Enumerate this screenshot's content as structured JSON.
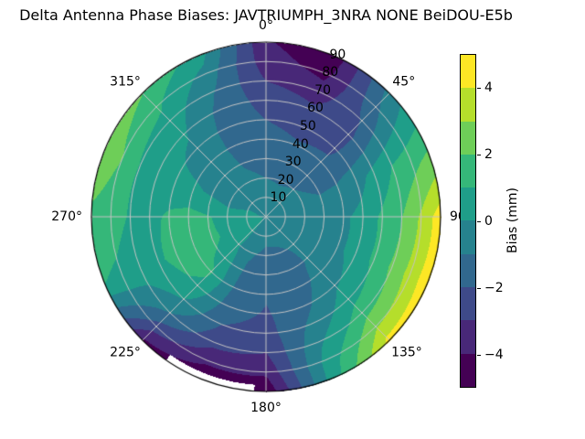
{
  "chart_data": {
    "type": "heatmap",
    "subtype": "polar-filled-contour-skyplot",
    "title": "Delta Antenna Phase Biases: JAVTRIUMPH_3NRA NONE BeiDOU-E5b",
    "theta_ticks": [
      {
        "angle": 0,
        "label": "0°"
      },
      {
        "angle": 45,
        "label": "45°"
      },
      {
        "angle": 90,
        "label": "90"
      },
      {
        "angle": 135,
        "label": "135°"
      },
      {
        "angle": 180,
        "label": "180°"
      },
      {
        "angle": 225,
        "label": "225°"
      },
      {
        "angle": 270,
        "label": "270°"
      },
      {
        "angle": 315,
        "label": "315°"
      }
    ],
    "radial_ticks": [
      {
        "value": 10,
        "label": "10"
      },
      {
        "value": 20,
        "label": "20"
      },
      {
        "value": 30,
        "label": "30"
      },
      {
        "value": 40,
        "label": "40"
      },
      {
        "value": 50,
        "label": "50"
      },
      {
        "value": 60,
        "label": "60"
      },
      {
        "value": 70,
        "label": "70"
      },
      {
        "value": 80,
        "label": "80"
      },
      {
        "value": 90,
        "label": "90"
      }
    ],
    "radial_label_angle_deg": 22.5,
    "grid_color": "#c4c4c4",
    "outline_color": "#000000",
    "colorbar": {
      "label": "Bias (mm)",
      "vmin": -5,
      "vmax": 5,
      "band_step": 1,
      "ticks": [
        {
          "value": 4,
          "label": "4"
        },
        {
          "value": 2,
          "label": "2"
        },
        {
          "value": 0,
          "label": "0"
        },
        {
          "value": -2,
          "label": "−2"
        },
        {
          "value": -4,
          "label": "−4"
        }
      ],
      "palette": [
        "#440154",
        "#482878",
        "#3e4a89",
        "#31688e",
        "#26828e",
        "#1f9e89",
        "#35b779",
        "#6ece58",
        "#b5de2b",
        "#fde725"
      ]
    },
    "grid": {
      "azimuth_step_deg": 22.5,
      "zenith_step_deg": 10,
      "zenith_values": [
        0,
        10,
        20,
        30,
        40,
        50,
        60,
        70,
        80,
        90
      ],
      "azimuth_values": [
        0,
        22.5,
        45,
        67.5,
        90,
        112.5,
        135,
        157.5,
        180,
        202.5,
        225,
        247.5,
        270,
        292.5,
        315,
        337.5
      ],
      "bias_mm": [
        [
          -0.05,
          -0.6,
          -1.0,
          -1.4,
          -1.7,
          -2.0,
          -2.4,
          -3.0,
          -3.6,
          -3.9
        ],
        [
          -0.05,
          -0.7,
          -1.1,
          -1.5,
          -1.9,
          -2.3,
          -2.8,
          -3.5,
          -4.3,
          -4.7
        ],
        [
          -0.05,
          -0.6,
          -1.0,
          -1.4,
          -1.8,
          -2.2,
          -2.3,
          -1.9,
          -1.2,
          -0.6
        ],
        [
          -0.05,
          -0.5,
          -0.8,
          -1.0,
          -0.9,
          -0.4,
          0.3,
          1.0,
          1.5,
          2.0
        ],
        [
          -0.05,
          -0.4,
          -0.5,
          -0.5,
          -0.2,
          0.4,
          1.2,
          2.0,
          3.2,
          4.6
        ],
        [
          -0.05,
          -0.5,
          -0.6,
          -0.5,
          -0.2,
          0.4,
          1.2,
          2.2,
          3.4,
          4.7
        ],
        [
          -0.05,
          -0.7,
          -0.9,
          -0.9,
          -0.6,
          -0.1,
          0.6,
          1.6,
          2.9,
          4.4
        ],
        [
          -0.05,
          -0.8,
          -1.1,
          -1.4,
          -1.5,
          -1.3,
          -0.8,
          -0.2,
          0.3,
          0.5
        ],
        [
          -0.05,
          -0.8,
          -1.2,
          -1.6,
          -1.9,
          -2.1,
          -2.4,
          -3.0,
          -3.8,
          -4.8
        ],
        [
          -0.05,
          -0.6,
          -0.9,
          -1.1,
          -1.3,
          -1.6,
          -2.0,
          -2.7,
          -3.8,
          -4.8
        ],
        [
          -0.05,
          0.1,
          0.1,
          0.6,
          1.1,
          0.8,
          0.0,
          -1.0,
          -2.5,
          -4.2
        ],
        [
          -0.05,
          0.2,
          0.6,
          1.3,
          1.6,
          1.4,
          0.8,
          0.5,
          0.8,
          1.0
        ],
        [
          -0.05,
          0.2,
          0.5,
          1.1,
          1.4,
          1.2,
          0.7,
          0.9,
          1.4,
          1.7
        ],
        [
          -0.05,
          0.0,
          -0.3,
          -0.1,
          0.1,
          0.2,
          0.4,
          0.9,
          2.0,
          3.0
        ],
        [
          -0.05,
          -0.4,
          -0.5,
          -0.5,
          -0.4,
          -0.2,
          0.1,
          0.6,
          1.2,
          2.0
        ],
        [
          -0.05,
          -0.5,
          -0.8,
          -1.1,
          -1.3,
          -1.4,
          -1.3,
          -1.0,
          -0.4,
          0.4
        ]
      ]
    },
    "no_data_sector": {
      "azimuth_from_deg": 184,
      "azimuth_to_deg": 215,
      "zenith_min_deg": 86.5
    }
  }
}
